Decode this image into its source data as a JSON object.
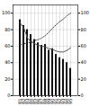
{
  "chart_data": {
    "type": "bar",
    "categories": [
      "81",
      "82",
      "83",
      "84",
      "85",
      "86",
      "87",
      "88",
      "89",
      "90",
      "91",
      "92",
      "93",
      "94",
      "95"
    ],
    "series": [
      {
        "type": "bar",
        "color": "#111111",
        "values": [
          92,
          85,
          80,
          74,
          68,
          64,
          61,
          62,
          55,
          57,
          50,
          46,
          44,
          40,
          33
        ]
      },
      {
        "type": "line",
        "color": "#555555",
        "line_style": "solid",
        "values": [
          88,
          82,
          70,
          65,
          63,
          61,
          60,
          59,
          57,
          56,
          54,
          53,
          53,
          55,
          58
        ]
      },
      {
        "type": "line",
        "color": "#333333",
        "line_style": "dotted",
        "values": [
          62,
          63,
          64,
          65,
          67,
          68,
          70,
          73,
          77,
          82,
          86,
          90,
          93,
          97,
          100
        ]
      }
    ],
    "ylim": [
      0,
      110
    ],
    "yticks": [
      0,
      20,
      40,
      60,
      80,
      100
    ],
    "y2lim": [
      0,
      110
    ],
    "y2ticks": [
      0,
      20,
      40,
      60,
      80,
      100
    ],
    "grid": true
  }
}
